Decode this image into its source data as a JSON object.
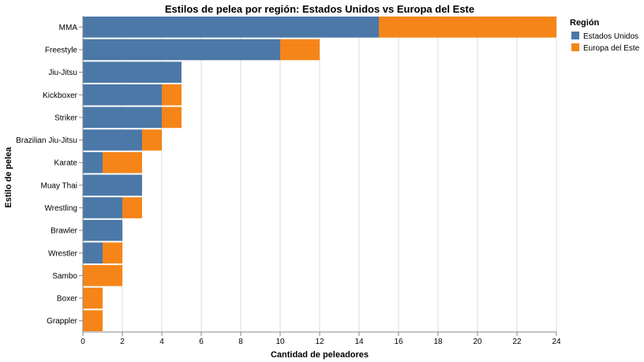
{
  "chart_data": {
    "type": "bar",
    "orientation": "horizontal",
    "stacked": true,
    "title": "Estilos de pelea por región: Estados Unidos vs Europa del Este",
    "xlabel": "Cantidad de peleadores",
    "ylabel": "Estilo de pelea",
    "xlim": [
      0,
      24
    ],
    "xticks": [
      0,
      2,
      4,
      6,
      8,
      10,
      12,
      14,
      16,
      18,
      20,
      22,
      24
    ],
    "grid": true,
    "legend": {
      "title": "Región",
      "placement": "top-right"
    },
    "categories": [
      "MMA",
      "Freestyle",
      "Jiu-Jitsu",
      "Kickboxer",
      "Striker",
      "Brazilian Jiu-Jitsu",
      "Karate",
      "Muay Thai",
      "Wrestling",
      "Brawler",
      "Wrestler",
      "Sambo",
      "Boxer",
      "Grappler"
    ],
    "series": [
      {
        "name": "Estados Unidos",
        "color": "#4c78a8",
        "values": [
          15,
          10,
          5,
          4,
          4,
          3,
          1,
          3,
          2,
          2,
          1,
          0,
          0,
          0
        ]
      },
      {
        "name": "Europa del Este",
        "color": "#f58518",
        "values": [
          9,
          2,
          0,
          1,
          1,
          1,
          2,
          0,
          1,
          0,
          1,
          2,
          1,
          1
        ]
      }
    ]
  }
}
